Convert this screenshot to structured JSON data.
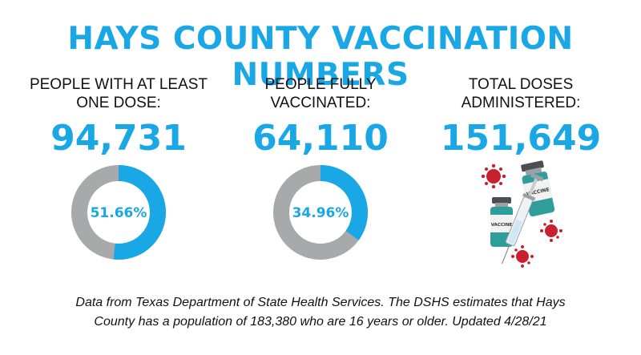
{
  "title": "HAYS COUNTY VACCINATION NUMBERS",
  "stats": [
    {
      "label_line1": "PEOPLE WITH AT LEAST",
      "label_line2": "ONE DOSE:",
      "value": "94,731",
      "percent_text": "51.66%",
      "percent": 51.66
    },
    {
      "label_line1": "PEOPLE FULLY",
      "label_line2": "VACCINATED:",
      "value": "64,110",
      "percent_text": "34.96%",
      "percent": 34.96
    },
    {
      "label_line1": "TOTAL DOSES",
      "label_line2": "ADMINISTERED:",
      "value": "151,649"
    }
  ],
  "illustration": {
    "vial_label": "VACCINE",
    "icon": "vaccine-vials-syringe-virus-icon"
  },
  "footnote": {
    "line1": "Data from Texas Department of State Health Services. The DSHS estimates that Hays",
    "line2": "County has a population of 183,380 who are 16 years or older. Updated 4/28/21"
  },
  "colors": {
    "accent": "#1aa7e6",
    "ring_track": "#a7a9ab",
    "virus": "#c8202f",
    "vial_liquid": "#2f9e9a"
  }
}
